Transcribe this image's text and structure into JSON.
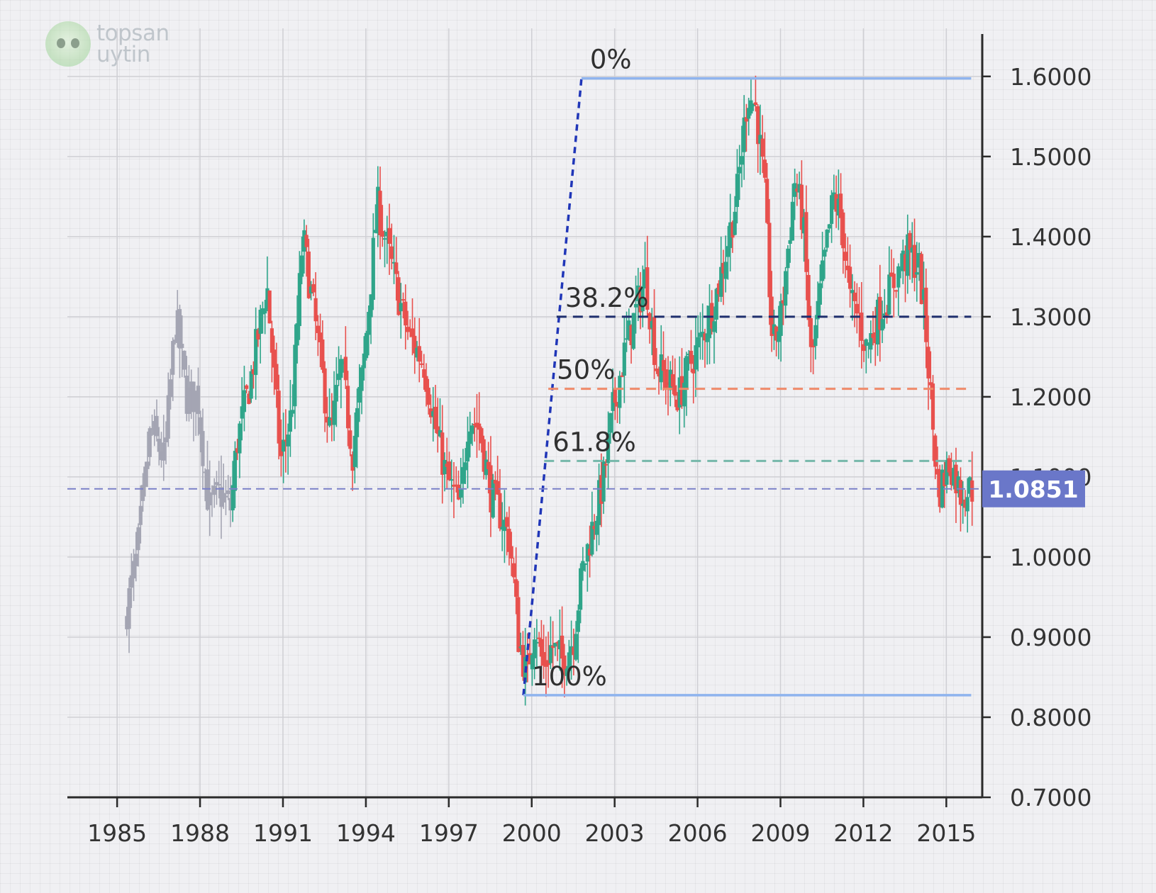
{
  "logo": {
    "line1": "topsan",
    "line2": "uytin",
    "icon": "owl-mascot-icon"
  },
  "colors": {
    "up": "#2fa58a",
    "down": "#e8504d",
    "history": "#a4a5b3",
    "axis": "#2a2a2a",
    "grid": "#cfcfd4",
    "fib_extreme": "#8fb4ee",
    "fib_382": "#1f2f6e",
    "fib_50": "#f08a6a",
    "fib_618": "#76b8aa",
    "trend": "#2036b8",
    "current_line": "#7a80c8",
    "current_tag": "#6a77c9"
  },
  "chart_data": {
    "type": "candlestick",
    "title": "",
    "xlabel": "",
    "ylabel": "",
    "xlim": [
      1983.2,
      2016.3
    ],
    "ylim": [
      0.7,
      1.66
    ],
    "x_ticks": [
      "1985",
      "1988",
      "1991",
      "1994",
      "1997",
      "2000",
      "2003",
      "2006",
      "2009",
      "2012",
      "2015"
    ],
    "y_ticks": [
      "1.6000",
      "1.5000",
      "1.4000",
      "1.3000",
      "1.2000",
      "1.1000",
      "1.0000",
      "0.9000",
      "0.8000",
      "0.7000"
    ],
    "grid": true,
    "price_path": [
      [
        1985.35,
        0.92
      ],
      [
        1985.8,
        1.0
      ],
      [
        1986.3,
        1.16
      ],
      [
        1986.8,
        1.12
      ],
      [
        1987.2,
        1.3
      ],
      [
        1987.6,
        1.2
      ],
      [
        1988.0,
        1.2
      ],
      [
        1988.4,
        1.06
      ],
      [
        1988.8,
        1.08
      ],
      [
        1989.2,
        1.06
      ],
      [
        1989.4,
        1.14
      ],
      [
        1989.9,
        1.22
      ],
      [
        1990.5,
        1.34
      ],
      [
        1991.0,
        1.12
      ],
      [
        1991.4,
        1.18
      ],
      [
        1991.8,
        1.4
      ],
      [
        1992.3,
        1.28
      ],
      [
        1992.8,
        1.15
      ],
      [
        1993.2,
        1.24
      ],
      [
        1993.6,
        1.13
      ],
      [
        1994.0,
        1.24
      ],
      [
        1994.2,
        1.32
      ],
      [
        1994.5,
        1.44
      ],
      [
        1994.9,
        1.38
      ],
      [
        1995.3,
        1.32
      ],
      [
        1995.6,
        1.28
      ],
      [
        1996.2,
        1.24
      ],
      [
        1996.6,
        1.16
      ],
      [
        1997.0,
        1.1
      ],
      [
        1997.5,
        1.06
      ],
      [
        1997.8,
        1.18
      ],
      [
        1998.2,
        1.16
      ],
      [
        1998.6,
        1.08
      ],
      [
        1999.0,
        1.05
      ],
      [
        1999.3,
        1.02
      ],
      [
        1999.6,
        0.9
      ],
      [
        1999.9,
        0.85
      ],
      [
        2000.2,
        0.92
      ],
      [
        2000.5,
        0.86
      ],
      [
        2000.8,
        0.89
      ],
      [
        2001.2,
        0.87
      ],
      [
        2001.6,
        0.9
      ],
      [
        2001.9,
        0.98
      ],
      [
        2002.3,
        1.04
      ],
      [
        2002.7,
        1.1
      ],
      [
        2003.0,
        1.18
      ],
      [
        2003.4,
        1.25
      ],
      [
        2003.8,
        1.3
      ],
      [
        2004.2,
        1.35
      ],
      [
        2004.6,
        1.24
      ],
      [
        2005.0,
        1.22
      ],
      [
        2005.4,
        1.2
      ],
      [
        2005.8,
        1.24
      ],
      [
        2006.2,
        1.27
      ],
      [
        2006.7,
        1.32
      ],
      [
        2007.1,
        1.38
      ],
      [
        2007.5,
        1.45
      ],
      [
        2007.9,
        1.58
      ],
      [
        2008.2,
        1.56
      ],
      [
        2008.5,
        1.46
      ],
      [
        2008.8,
        1.26
      ],
      [
        2009.1,
        1.3
      ],
      [
        2009.6,
        1.47
      ],
      [
        2009.9,
        1.42
      ],
      [
        2010.2,
        1.24
      ],
      [
        2010.6,
        1.35
      ],
      [
        2011.0,
        1.45
      ],
      [
        2011.3,
        1.42
      ],
      [
        2011.6,
        1.32
      ],
      [
        2011.9,
        1.3
      ],
      [
        2012.2,
        1.26
      ],
      [
        2012.6,
        1.3
      ],
      [
        2013.0,
        1.33
      ],
      [
        2013.4,
        1.36
      ],
      [
        2013.7,
        1.38
      ],
      [
        2014.1,
        1.36
      ],
      [
        2014.3,
        1.3
      ],
      [
        2014.6,
        1.16
      ],
      [
        2014.8,
        1.08
      ],
      [
        2015.2,
        1.12
      ],
      [
        2015.6,
        1.08
      ],
      [
        2015.95,
        1.085
      ]
    ],
    "history_end": 1989.15,
    "fibonacci": {
      "trend_start": {
        "x": 1999.7,
        "y": 0.8275
      },
      "trend_end": {
        "x": 2001.8,
        "y": 1.5975
      },
      "x_end": 2015.9,
      "levels": [
        {
          "label": "0%",
          "value": 1.5975,
          "x_start": 2001.8,
          "style": "solid",
          "color_key": "fib_extreme"
        },
        {
          "label": "38.2%",
          "value": 1.3,
          "x_start": 2000.9,
          "style": "dashed",
          "color_key": "fib_382"
        },
        {
          "label": "50%",
          "value": 1.21,
          "x_start": 2000.6,
          "style": "dashed",
          "color_key": "fib_50"
        },
        {
          "label": "61.8%",
          "value": 1.12,
          "x_start": 2000.45,
          "style": "dashed",
          "color_key": "fib_618"
        },
        {
          "label": "100%",
          "value": 0.8275,
          "x_start": 1999.7,
          "style": "solid",
          "color_key": "fib_extreme"
        }
      ]
    },
    "current_price": {
      "value": 1.0851,
      "label": "1.0851"
    }
  }
}
